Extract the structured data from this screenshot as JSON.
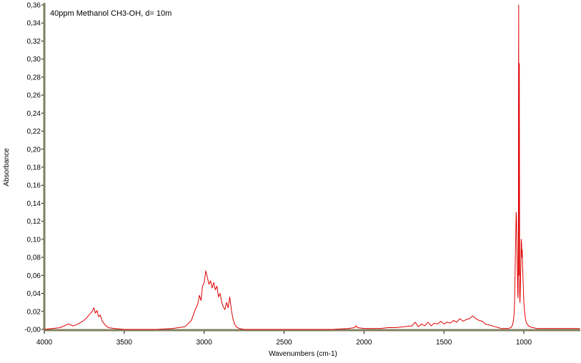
{
  "chart_data": {
    "type": "line",
    "annotation": "40ppm Methanol CH3-OH, d= 10m",
    "xlabel": "Wavenumbers (cm-1)",
    "ylabel": "Absorbance",
    "xlim": [
      4000,
      650
    ],
    "ylim": [
      -0.005,
      0.36
    ],
    "x_reversed": true,
    "grid": false,
    "x_ticks": [
      4000,
      3500,
      3000,
      2500,
      2000,
      1500,
      1000
    ],
    "x_tick_labels": [
      "4000",
      "3500",
      "3000",
      "2500",
      "2000",
      "1500",
      "1000"
    ],
    "y_ticks": [
      0.36,
      0.34,
      0.32,
      0.3,
      0.28,
      0.26,
      0.24,
      0.22,
      0.2,
      0.18,
      0.16,
      0.14,
      0.12,
      0.1,
      0.08,
      0.06,
      0.04,
      0.02,
      0.0
    ],
    "y_tick_labels": [
      "0,36",
      "0,34",
      "0,32",
      "0,30",
      "0,28",
      "0,26",
      "0,24",
      "0,22",
      "0,20",
      "0,18",
      "0,16",
      "0,14",
      "0,12",
      "0,10",
      "0,08",
      "0,06",
      "0,04",
      "0,02",
      "-0,00"
    ],
    "series": [
      {
        "color": "#e00000",
        "x": [
          4000,
          3900,
          3850,
          3820,
          3800,
          3780,
          3760,
          3740,
          3720,
          3700,
          3690,
          3680,
          3670,
          3660,
          3650,
          3640,
          3620,
          3600,
          3560,
          3500,
          3400,
          3300,
          3200,
          3120,
          3080,
          3060,
          3040,
          3030,
          3020,
          3010,
          3000,
          2990,
          2980,
          2970,
          2960,
          2950,
          2940,
          2930,
          2920,
          2910,
          2900,
          2890,
          2880,
          2870,
          2860,
          2850,
          2840,
          2830,
          2820,
          2810,
          2800,
          2780,
          2750,
          2700,
          2600,
          2500,
          2400,
          2300,
          2200,
          2100,
          2060,
          2050,
          2040,
          2000,
          1950,
          1900,
          1850,
          1800,
          1750,
          1700,
          1680,
          1660,
          1640,
          1620,
          1600,
          1580,
          1560,
          1540,
          1520,
          1500,
          1480,
          1460,
          1440,
          1420,
          1400,
          1380,
          1360,
          1340,
          1320,
          1300,
          1280,
          1260,
          1240,
          1220,
          1200,
          1180,
          1160,
          1140,
          1120,
          1100,
          1080,
          1070,
          1065,
          1060,
          1058,
          1056,
          1054,
          1052,
          1050,
          1048,
          1046,
          1044,
          1042,
          1040,
          1038,
          1036,
          1034,
          1033,
          1032,
          1031,
          1030,
          1028,
          1026,
          1024,
          1022,
          1020,
          1018,
          1016,
          1014,
          1012,
          1010,
          1008,
          1006,
          1004,
          1002,
          1000,
          995,
          990,
          985,
          980,
          970,
          960,
          950,
          940,
          920,
          900,
          850,
          800,
          750,
          700,
          650
        ],
        "y": [
          0.0,
          0.002,
          0.006,
          0.004,
          0.005,
          0.007,
          0.009,
          0.012,
          0.016,
          0.02,
          0.024,
          0.018,
          0.021,
          0.014,
          0.016,
          0.01,
          0.005,
          0.002,
          0.001,
          0.0,
          0.0,
          0.0,
          0.001,
          0.003,
          0.01,
          0.02,
          0.028,
          0.038,
          0.032,
          0.048,
          0.052,
          0.065,
          0.058,
          0.05,
          0.054,
          0.046,
          0.052,
          0.044,
          0.048,
          0.036,
          0.04,
          0.03,
          0.025,
          0.022,
          0.03,
          0.024,
          0.036,
          0.022,
          0.012,
          0.006,
          0.003,
          0.001,
          0.0,
          0.0,
          0.0,
          0.0,
          0.0,
          0.0,
          0.0,
          0.001,
          0.002,
          0.004,
          0.002,
          0.001,
          0.001,
          0.001,
          0.002,
          0.002,
          0.003,
          0.004,
          0.008,
          0.003,
          0.006,
          0.004,
          0.008,
          0.004,
          0.007,
          0.006,
          0.009,
          0.006,
          0.008,
          0.007,
          0.01,
          0.008,
          0.012,
          0.009,
          0.011,
          0.012,
          0.015,
          0.012,
          0.01,
          0.009,
          0.006,
          0.005,
          0.004,
          0.003,
          0.002,
          0.001,
          0.001,
          0.001,
          0.002,
          0.005,
          0.01,
          0.02,
          0.03,
          0.05,
          0.07,
          0.09,
          0.11,
          0.13,
          0.125,
          0.1,
          0.08,
          0.06,
          0.04,
          0.035,
          0.1,
          0.25,
          0.36,
          0.12,
          0.06,
          0.295,
          0.04,
          0.03,
          0.045,
          0.06,
          0.08,
          0.1,
          0.095,
          0.08,
          0.088,
          0.07,
          0.06,
          0.05,
          0.04,
          0.03,
          0.02,
          0.012,
          0.008,
          0.006,
          0.004,
          0.003,
          0.002,
          0.002,
          0.001,
          0.001,
          0.001,
          0.001,
          0.001,
          0.001,
          0.001
        ]
      }
    ]
  },
  "colors": {
    "trace": "#e00000",
    "axis": "#808060",
    "background": "#ffffff"
  }
}
